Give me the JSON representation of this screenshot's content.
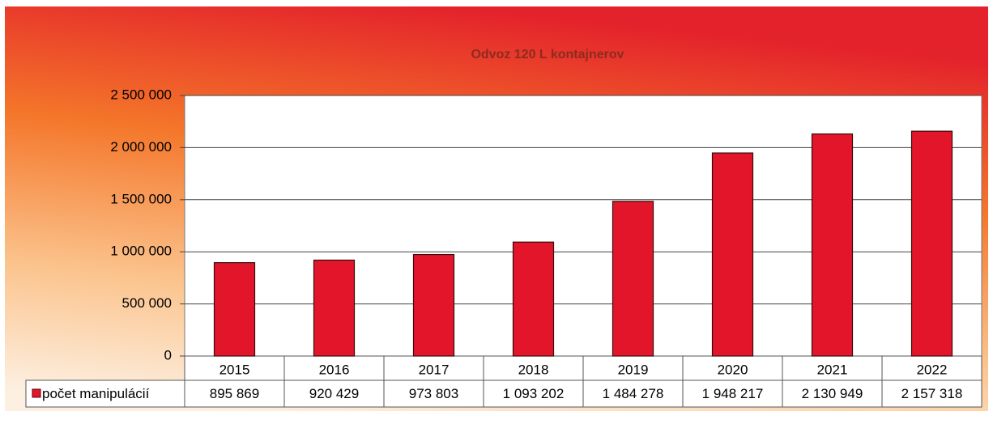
{
  "chart_data": {
    "type": "bar",
    "title": "Odvoz 120 L kontajnerov",
    "categories": [
      "2015",
      "2016",
      "2017",
      "2018",
      "2019",
      "2020",
      "2021",
      "2022"
    ],
    "series": [
      {
        "name": "počet manipulácií",
        "color": "#e3152b",
        "values": [
          895869,
          920429,
          973803,
          1093202,
          1484278,
          1948217,
          2130949,
          2157318
        ],
        "value_labels": [
          "895 869",
          "920 429",
          "973 803",
          "1 093 202",
          "1 484 278",
          "1 948 217",
          "2 130 949",
          "2 157 318"
        ]
      }
    ],
    "ylim": [
      0,
      2500000
    ],
    "yticks": [
      0,
      {
        "value": 500000,
        "label": "500 000"
      },
      {
        "value": 1000000,
        "label": "1 000 000"
      },
      {
        "value": 1500000,
        "label": "1 500 000"
      },
      {
        "value": 2000000,
        "label": "2 000 000"
      },
      {
        "value": 2500000,
        "label": "2 500 000"
      }
    ],
    "grid": true
  }
}
